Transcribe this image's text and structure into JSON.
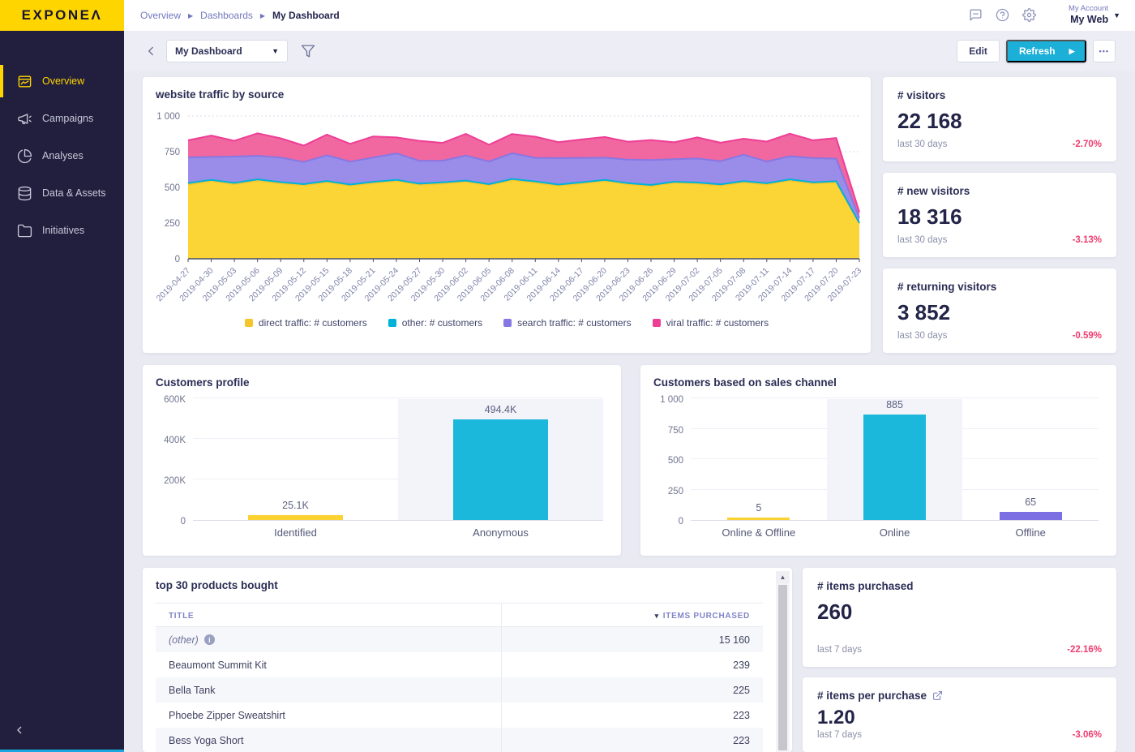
{
  "brand": {
    "logo_text": "EXPONEΛ",
    "brand_yellow": "#FFD500"
  },
  "topbar": {
    "breadcrumb": [
      {
        "label": "Overview"
      },
      {
        "label": "Dashboards"
      },
      {
        "label": "My Dashboard"
      }
    ],
    "account_label": "My Account",
    "project_name": "My Web"
  },
  "sidebar": {
    "items": [
      {
        "label": "Overview",
        "icon": "overview-icon",
        "active": true
      },
      {
        "label": "Campaigns",
        "icon": "megaphone-icon",
        "active": false
      },
      {
        "label": "Analyses",
        "icon": "pie-chart-icon",
        "active": false
      },
      {
        "label": "Data & Assets",
        "icon": "database-icon",
        "active": false
      },
      {
        "label": "Initiatives",
        "icon": "folder-icon",
        "active": false
      }
    ]
  },
  "toolbar": {
    "dashboard_select": "My Dashboard",
    "edit_label": "Edit",
    "refresh_label": "Refresh",
    "more_label": "•••"
  },
  "kpis": [
    {
      "title": "# visitors",
      "value": "22 168",
      "period": "last 30 days",
      "change": "-2.70%"
    },
    {
      "title": "# new visitors",
      "value": "18 316",
      "period": "last 30 days",
      "change": "-3.13%"
    },
    {
      "title": "# returning visitors",
      "value": "3 852",
      "period": "last 30 days",
      "change": "-0.59%"
    },
    {
      "title": "# items purchased",
      "value": "260",
      "period": "last 7 days",
      "change": "-22.16%"
    },
    {
      "title": "# items per purchase",
      "value": "1.20",
      "period": "last 7 days",
      "change": "-3.06%",
      "external_link": true
    }
  ],
  "chart_data": [
    {
      "type": "area",
      "stacked": true,
      "title": "website traffic by source",
      "x": [
        "2019-04-27",
        "2019-04-30",
        "2019-05-03",
        "2019-05-06",
        "2019-05-09",
        "2019-05-12",
        "2019-05-15",
        "2019-05-18",
        "2019-05-21",
        "2019-05-24",
        "2019-05-27",
        "2019-05-30",
        "2019-06-02",
        "2019-06-05",
        "2019-06-08",
        "2019-06-11",
        "2019-06-14",
        "2019-06-17",
        "2019-06-20",
        "2019-06-23",
        "2019-06-26",
        "2019-06-29",
        "2019-07-02",
        "2019-07-05",
        "2019-07-08",
        "2019-07-11",
        "2019-07-14",
        "2019-07-17",
        "2019-07-20",
        "2019-07-23"
      ],
      "series": [
        {
          "name": "direct traffic: # customers",
          "color": "#FBD436",
          "line": "#F5C62B",
          "values": [
            520,
            545,
            522,
            548,
            528,
            515,
            535,
            512,
            530,
            545,
            518,
            526,
            540,
            515,
            550,
            532,
            512,
            527,
            545,
            522,
            508,
            532,
            526,
            512,
            536,
            520,
            548,
            526,
            535,
            245
          ]
        },
        {
          "name": "other: # customers",
          "color": "#19B9DC",
          "line": "#00B2D8",
          "values": [
            10,
            8,
            9,
            8,
            9,
            8,
            10,
            8,
            9,
            8,
            8,
            9,
            8,
            8,
            9,
            10,
            8,
            9,
            8,
            8,
            9,
            8,
            8,
            9,
            8,
            9,
            8,
            9,
            8,
            6
          ]
        },
        {
          "name": "search traffic: # customers",
          "color": "#9A8CE9",
          "line": "#8678E4",
          "values": [
            180,
            160,
            185,
            165,
            172,
            155,
            180,
            160,
            170,
            185,
            160,
            152,
            175,
            158,
            180,
            165,
            185,
            170,
            155,
            165,
            175,
            158,
            168,
            162,
            185,
            152,
            162,
            170,
            158,
            35
          ]
        },
        {
          "name": "viral traffic: # customers",
          "color": "#F1679F",
          "line": "#EE3E96",
          "values": [
            120,
            150,
            110,
            158,
            135,
            115,
            145,
            125,
            148,
            112,
            140,
            125,
            152,
            118,
            135,
            148,
            112,
            130,
            145,
            125,
            140,
            118,
            148,
            130,
            112,
            140,
            158,
            125,
            145,
            40
          ]
        }
      ],
      "ylim": [
        0,
        1000
      ],
      "ytick_values": [
        0,
        250,
        500,
        750,
        1000
      ],
      "yticks": [
        "0",
        "250",
        "500",
        "750",
        "1 000"
      ],
      "legend_position": "bottom",
      "grid": "dashed-horizontal"
    },
    {
      "type": "bar",
      "title": "Customers profile",
      "categories": [
        "Identified",
        "Anonymous"
      ],
      "values": [
        25100,
        494400
      ],
      "value_labels": [
        "25.1K",
        "494.4K"
      ],
      "colors": [
        "#FCD232",
        "#1CB8DB"
      ],
      "ylim": [
        0,
        600000
      ],
      "ytick_values": [
        0,
        200000,
        400000,
        600000
      ],
      "yticks": [
        "0",
        "200K",
        "400K",
        "600K"
      ],
      "band_index": 1
    },
    {
      "type": "bar",
      "title": "Customers based on sales channel",
      "categories": [
        "Online & Offline",
        "Online",
        "Offline"
      ],
      "values": [
        5,
        885,
        65
      ],
      "value_labels": [
        "5",
        "885",
        "65"
      ],
      "colors": [
        "#FCD232",
        "#1CB8DB",
        "#7C6FE4"
      ],
      "ylim": [
        0,
        1000
      ],
      "ytick_values": [
        0,
        250,
        500,
        750,
        1000
      ],
      "yticks": [
        "0",
        "250",
        "500",
        "750",
        "1 000"
      ],
      "band_index": 1
    }
  ],
  "table": {
    "title": "top 30 products bought",
    "columns": [
      "TITLE",
      "ITEMS PURCHASED"
    ],
    "sort_caret": "▾",
    "rows": [
      {
        "title": "(other)",
        "info": true,
        "value": "15 160"
      },
      {
        "title": "Beaumont Summit Kit",
        "info": false,
        "value": "239"
      },
      {
        "title": "Bella Tank",
        "info": false,
        "value": "225"
      },
      {
        "title": "Phoebe Zipper Sweatshirt",
        "info": false,
        "value": "223"
      },
      {
        "title": "Bess Yoga Short",
        "info": false,
        "value": "223"
      }
    ]
  }
}
